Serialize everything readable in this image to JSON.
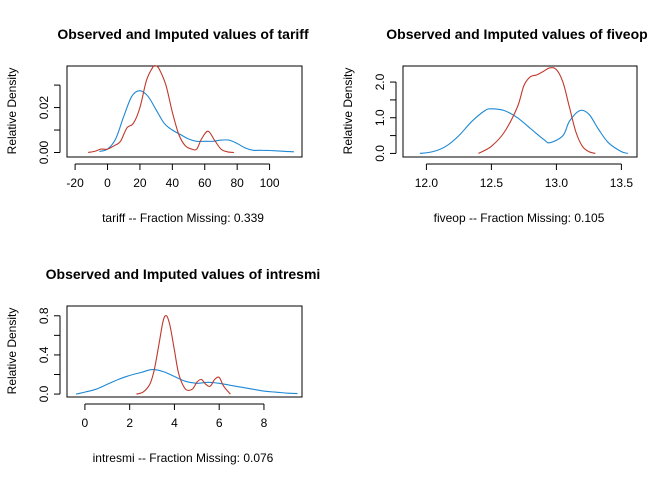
{
  "chart_data": [
    {
      "type": "line",
      "title": "Observed and Imputed values of tariff",
      "xlabel": "tariff   --  Fraction Missing: 0.339",
      "ylabel": "Relative Density",
      "xlim": [
        -25,
        120
      ],
      "ylim": [
        -0.002,
        0.0385
      ],
      "xticks": [
        -20,
        0,
        20,
        40,
        60,
        80,
        100
      ],
      "xtick_labels": [
        "-20",
        "0",
        "20",
        "40",
        "60",
        "80",
        "100"
      ],
      "yticks": [
        0.0,
        0.01,
        0.02,
        0.03
      ],
      "ytick_labels": [
        "0.00",
        "",
        "0.02",
        ""
      ],
      "grid": false,
      "legend": "none",
      "series": [
        {
          "color": "#1E88D4",
          "x": [
            -5,
            0,
            5,
            10,
            15,
            20,
            25,
            30,
            35,
            40,
            45,
            50,
            55,
            60,
            65,
            70,
            75,
            80,
            85,
            90,
            95,
            100,
            110,
            115
          ],
          "y": [
            0.0005,
            0.0015,
            0.006,
            0.016,
            0.025,
            0.0275,
            0.025,
            0.019,
            0.013,
            0.01,
            0.008,
            0.006,
            0.005,
            0.005,
            0.005,
            0.0055,
            0.0055,
            0.004,
            0.002,
            0.001,
            0.001,
            0.0009,
            0.0005,
            0.0003
          ]
        },
        {
          "color": "#C0392B",
          "x": [
            -12,
            -8,
            -4,
            0,
            4,
            8,
            12,
            16,
            20,
            24,
            28,
            30,
            32,
            36,
            40,
            44,
            48,
            52,
            55,
            58,
            62,
            66,
            70,
            74,
            78
          ],
          "y": [
            0.0,
            0.0005,
            0.0015,
            0.0015,
            0.003,
            0.005,
            0.011,
            0.013,
            0.02,
            0.032,
            0.038,
            0.0385,
            0.037,
            0.03,
            0.018,
            0.008,
            0.003,
            0.0015,
            0.0015,
            0.006,
            0.0095,
            0.0055,
            0.0015,
            0.0003,
            0.0
          ]
        }
      ]
    },
    {
      "type": "line",
      "title": "Observed and Imputed values of fiveop",
      "xlabel": "fiveop   --  Fraction Missing: 0.105",
      "ylabel": "Relative Density",
      "xlim": [
        11.82,
        13.62
      ],
      "ylim": [
        -0.1,
        2.45
      ],
      "xticks": [
        12.0,
        12.5,
        13.0,
        13.5
      ],
      "xtick_labels": [
        "12.0",
        "12.5",
        "13.0",
        "13.5"
      ],
      "yticks": [
        0.0,
        0.5,
        1.0,
        1.5,
        2.0
      ],
      "ytick_labels": [
        "0.0",
        "",
        "1.0",
        "",
        "2.0"
      ],
      "grid": false,
      "legend": "none",
      "series": [
        {
          "color": "#1E88D4",
          "x": [
            11.95,
            12.05,
            12.15,
            12.25,
            12.35,
            12.45,
            12.5,
            12.6,
            12.7,
            12.8,
            12.9,
            12.95,
            13.05,
            13.1,
            13.18,
            13.25,
            13.32,
            13.4,
            13.5,
            13.55
          ],
          "y": [
            0.0,
            0.05,
            0.2,
            0.5,
            0.9,
            1.2,
            1.25,
            1.2,
            1.0,
            0.7,
            0.4,
            0.3,
            0.5,
            0.9,
            1.2,
            1.1,
            0.7,
            0.3,
            0.05,
            0.0
          ]
        },
        {
          "color": "#C0392B",
          "x": [
            12.4,
            12.5,
            12.6,
            12.7,
            12.75,
            12.8,
            12.85,
            12.9,
            12.95,
            13.0,
            13.05,
            13.1,
            13.15,
            13.2,
            13.25,
            13.3
          ],
          "y": [
            0.0,
            0.2,
            0.6,
            1.3,
            1.9,
            2.15,
            2.2,
            2.3,
            2.4,
            2.35,
            2.0,
            1.3,
            0.6,
            0.2,
            0.05,
            0.0
          ]
        }
      ]
    },
    {
      "type": "line",
      "title": "Observed and Imputed values of intresmi",
      "xlabel": "intresmi   --  Fraction Missing: 0.076",
      "ylabel": "Relative Density",
      "xlim": [
        -0.8,
        9.7
      ],
      "ylim": [
        -0.03,
        0.9
      ],
      "xticks": [
        0,
        2,
        4,
        6,
        8
      ],
      "xtick_labels": [
        "0",
        "2",
        "4",
        "6",
        "8"
      ],
      "yticks": [
        0.0,
        0.2,
        0.4,
        0.6,
        0.8
      ],
      "ytick_labels": [
        "0.0",
        "",
        "0.4",
        "",
        "0.8"
      ],
      "grid": false,
      "legend": "none",
      "series": [
        {
          "color": "#1E88D4",
          "x": [
            -0.4,
            0,
            0.5,
            1.0,
            1.5,
            2.0,
            2.5,
            3.0,
            3.5,
            4.0,
            4.5,
            5.0,
            5.5,
            6.0,
            6.5,
            7.0,
            7.5,
            8.0,
            8.5,
            9.0,
            9.5
          ],
          "y": [
            0.0,
            0.02,
            0.05,
            0.1,
            0.15,
            0.19,
            0.22,
            0.25,
            0.23,
            0.18,
            0.13,
            0.11,
            0.12,
            0.11,
            0.09,
            0.07,
            0.05,
            0.03,
            0.02,
            0.01,
            0.005
          ]
        },
        {
          "color": "#C0392B",
          "x": [
            2.3,
            2.6,
            2.9,
            3.1,
            3.3,
            3.5,
            3.65,
            3.8,
            4.0,
            4.2,
            4.5,
            4.8,
            5.0,
            5.2,
            5.4,
            5.6,
            5.8,
            6.0,
            6.2,
            6.5
          ],
          "y": [
            0.0,
            0.02,
            0.1,
            0.25,
            0.5,
            0.75,
            0.8,
            0.7,
            0.45,
            0.2,
            0.05,
            0.05,
            0.12,
            0.15,
            0.1,
            0.08,
            0.15,
            0.17,
            0.08,
            0.0
          ]
        }
      ]
    }
  ]
}
